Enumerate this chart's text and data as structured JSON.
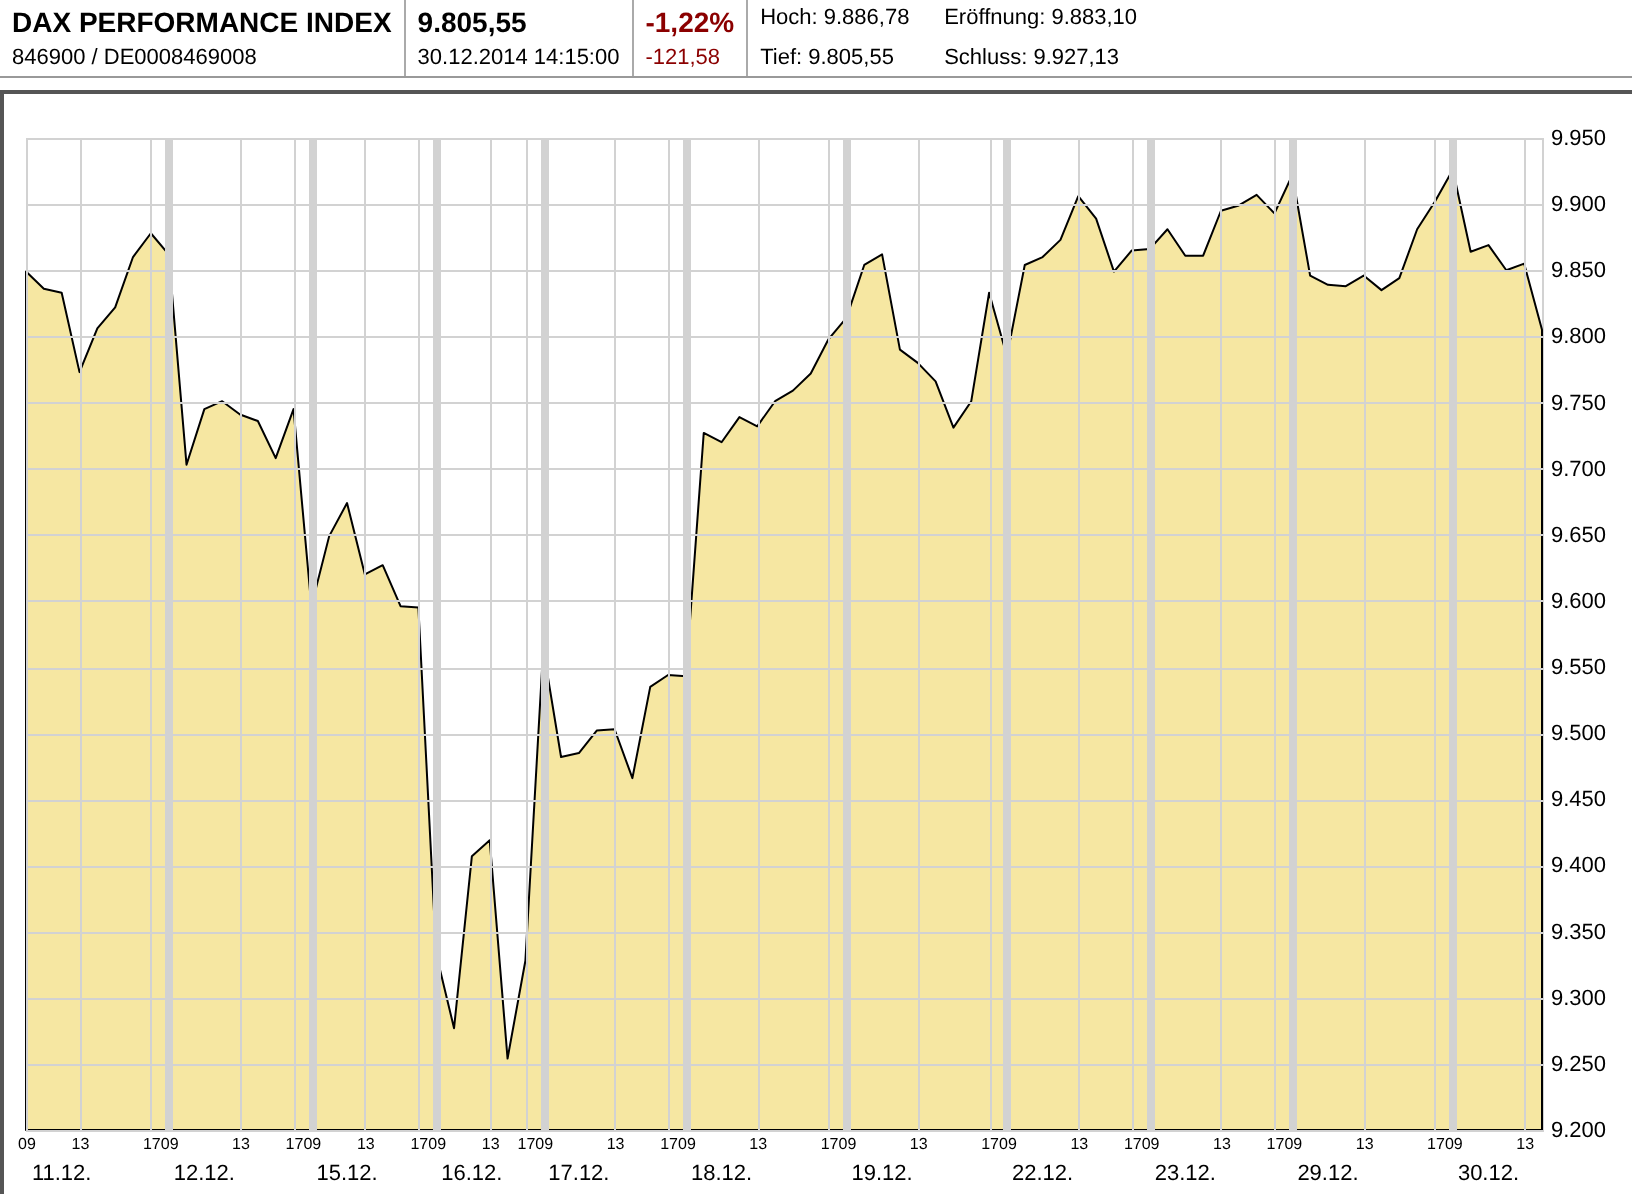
{
  "chart_data": {
    "type": "area",
    "title": "DAX PERFORMANCE INDEX",
    "subtitle": "846900 / DE0008469008",
    "annotations": [
      "9.805,55",
      "30.12.2014 14:15:00",
      "-1,22%",
      "-121,58",
      "Hoch: 9.886,78",
      "Eröffnung: 9.883,10",
      "Tief: 9.805,55",
      "Schluss: 9.927,13",
      "11.12.",
      "12.12.",
      "15.12.",
      "16.12.",
      "17.12.",
      "18.12.",
      "19.12.",
      "22.12.",
      "23.12.",
      "29.12.",
      "30.12."
    ],
    "categories": [
      "09",
      null,
      null,
      "13",
      null,
      null,
      null,
      "17",
      "09",
      null,
      null,
      null,
      "13",
      null,
      null,
      "17",
      "09",
      null,
      null,
      "13",
      null,
      null,
      "17",
      "09",
      null,
      null,
      "13",
      null,
      "17",
      "09",
      null,
      null,
      null,
      "13",
      null,
      null,
      "17",
      "09",
      null,
      null,
      null,
      "13",
      null,
      null,
      null,
      "17",
      "09",
      null,
      null,
      null,
      "13",
      null,
      null,
      null,
      "17",
      "09",
      null,
      null,
      null,
      "13",
      null,
      null,
      "17",
      "09",
      null,
      null,
      null,
      "13",
      null,
      null,
      "17",
      "09",
      null,
      null,
      null,
      "13",
      null,
      null,
      null,
      "17",
      "09",
      null,
      null,
      null,
      "13",
      null
    ],
    "series": [
      {
        "color": "#f6e7a2",
        "values": [
          9849,
          9836,
          9833,
          9773,
          9806,
          9822,
          9860,
          9878,
          9862,
          9703,
          9745,
          9751,
          9741,
          9736,
          9708,
          9745,
          9596,
          9649,
          9674,
          9620,
          9627,
          9596,
          9595,
          9333,
          9277,
          9407,
          9419,
          9254,
          9328,
          9564,
          9482,
          9485,
          9502,
          9503,
          9466,
          9535,
          9544,
          9543,
          9727,
          9720,
          9739,
          9732,
          9751,
          9759,
          9772,
          9798,
          9814,
          9854,
          9862,
          9790,
          9780,
          9766,
          9731,
          9751,
          9833,
          9785,
          9854,
          9860,
          9873,
          9906,
          9889,
          9849,
          9865,
          9866,
          9881,
          9861,
          9861,
          9895,
          9899,
          9907,
          9893,
          9922,
          9846,
          9839,
          9838,
          9846,
          9835,
          9844,
          9881,
          9902,
          9926,
          9864,
          9869,
          9850,
          9855,
          9805
        ]
      }
    ],
    "ylim": [
      9200,
      9950
    ],
    "yticks": [
      {
        "value": 9200,
        "label": "9.200"
      },
      {
        "value": 9250,
        "label": "9.250"
      },
      {
        "value": 9300,
        "label": "9.300"
      },
      {
        "value": 9350,
        "label": "9.350"
      },
      {
        "value": 9400,
        "label": "9.400"
      },
      {
        "value": 9450,
        "label": "9.450"
      },
      {
        "value": 9500,
        "label": "9.500"
      },
      {
        "value": 9550,
        "label": "9.550"
      },
      {
        "value": 9600,
        "label": "9.600"
      },
      {
        "value": 9650,
        "label": "9.650"
      },
      {
        "value": 9700,
        "label": "9.700"
      },
      {
        "value": 9750,
        "label": "9.750"
      },
      {
        "value": 9800,
        "label": "9.800"
      },
      {
        "value": 9850,
        "label": "9.850"
      },
      {
        "value": 9900,
        "label": "9.900"
      },
      {
        "value": 9950,
        "label": "9.950"
      }
    ],
    "grid": true,
    "marker": "none",
    "line_style": "solid"
  }
}
